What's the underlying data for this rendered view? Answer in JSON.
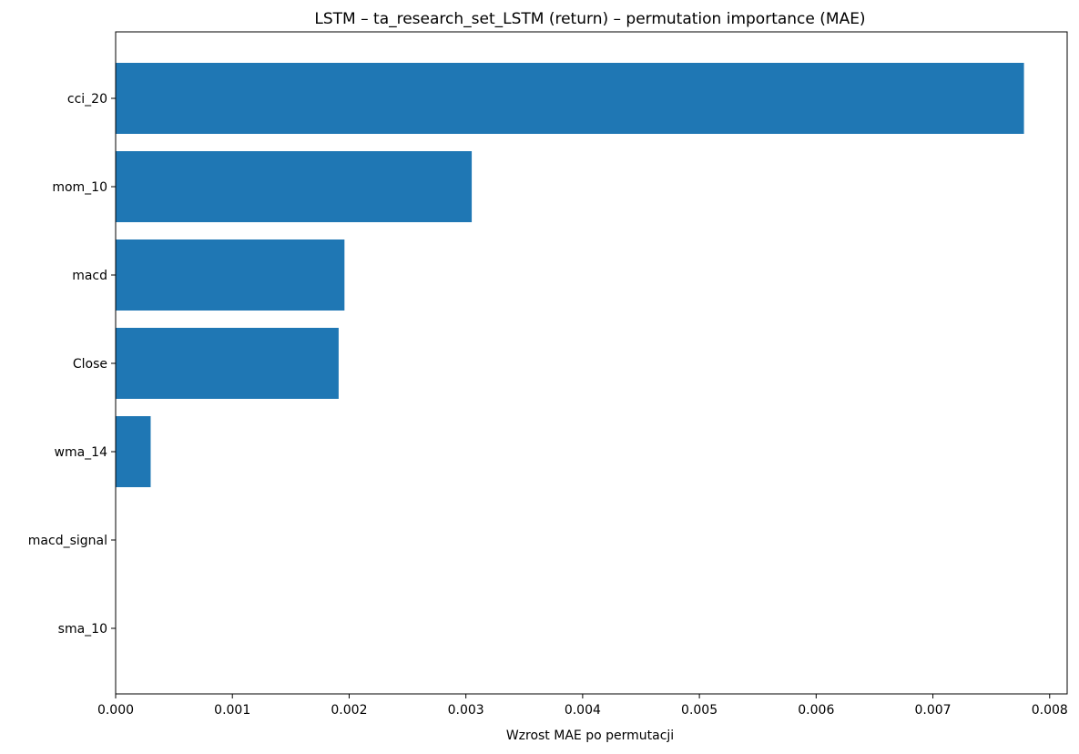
{
  "chart_data": {
    "type": "bar",
    "orientation": "horizontal",
    "title": "LSTM – ta_research_set_LSTM (return) – permutation importance (MAE)",
    "xlabel": "Wzrost MAE po permutacji",
    "ylabel": "",
    "categories": [
      "cci_20",
      "mom_10",
      "macd",
      "Close",
      "wma_14",
      "macd_signal",
      "sma_10"
    ],
    "values": [
      0.00778,
      0.00305,
      0.00196,
      0.00191,
      0.0003,
      0.0,
      0.0
    ],
    "xlim": [
      0,
      0.00815
    ],
    "xticks": [
      0,
      0.001,
      0.002,
      0.003,
      0.004,
      0.005,
      0.006,
      0.007,
      0.008
    ],
    "xtick_labels": [
      "0.000",
      "0.001",
      "0.002",
      "0.003",
      "0.004",
      "0.005",
      "0.006",
      "0.007",
      "0.008"
    ],
    "bar_color": "#1f77b4",
    "grid": false,
    "legend": "none"
  }
}
